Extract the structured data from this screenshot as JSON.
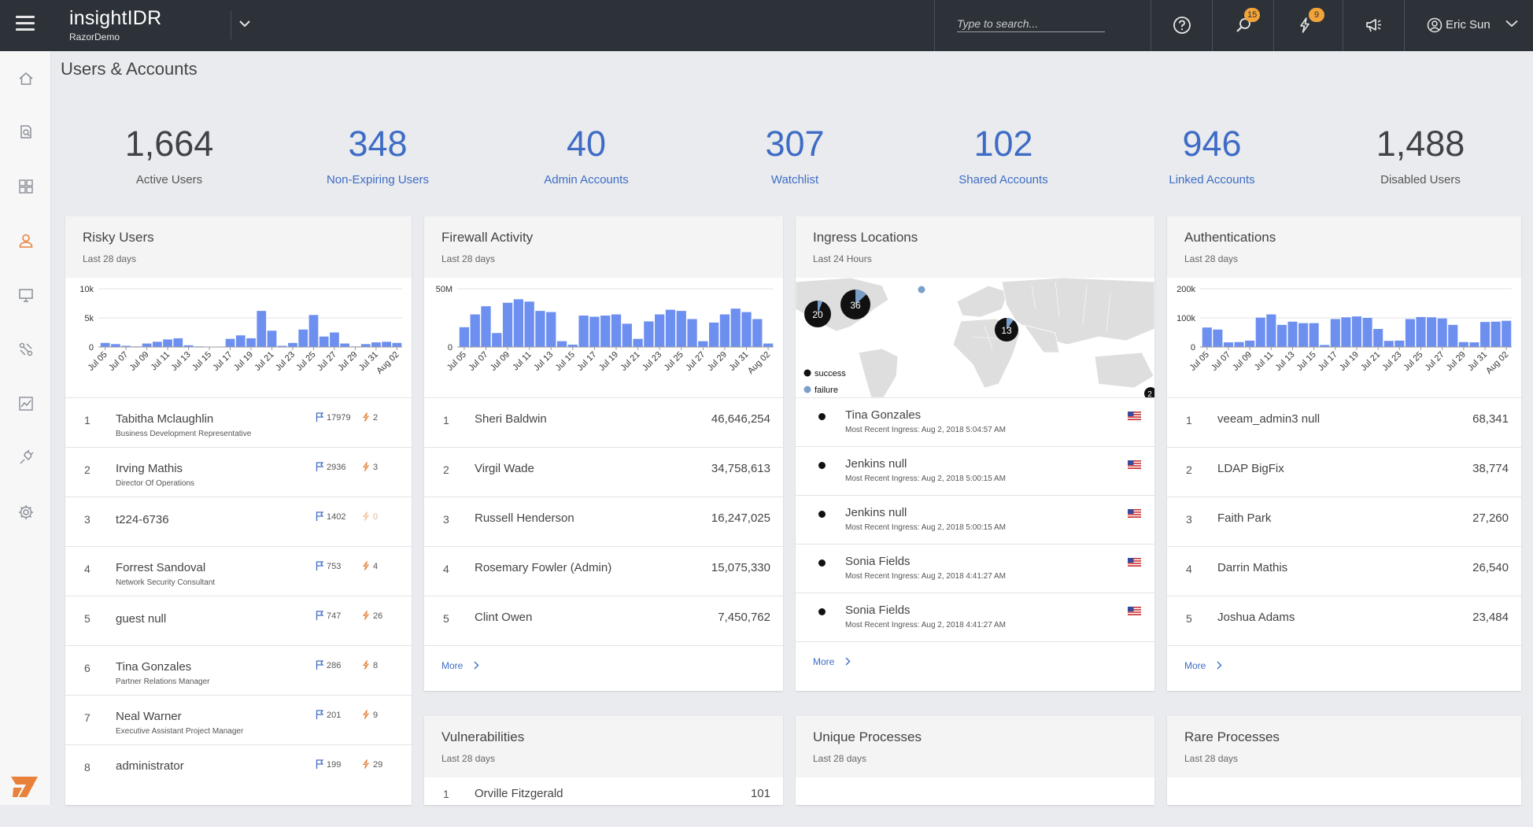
{
  "header": {
    "app_name": "insightIDR",
    "org_name": "RazorDemo",
    "search_placeholder": "Type to search...",
    "search_badge": "15",
    "alerts_badge": "9",
    "user_name": "Eric Sun"
  },
  "sidebar": {
    "items": [
      "home-icon",
      "search-document-icon",
      "dashboard-grid-icon",
      "user-icon",
      "monitor-icon",
      "network-tool-icon",
      "chart-icon",
      "plug-icon",
      "gear-icon"
    ],
    "active": "user-icon"
  },
  "page": {
    "title": "Users & Accounts"
  },
  "stats": [
    {
      "value": "1,664",
      "label": "Active Users",
      "style": "dark"
    },
    {
      "value": "348",
      "label": "Non-Expiring Users",
      "style": "blue"
    },
    {
      "value": "40",
      "label": "Admin Accounts",
      "style": "blue"
    },
    {
      "value": "307",
      "label": "Watchlist",
      "style": "blue"
    },
    {
      "value": "102",
      "label": "Shared Accounts",
      "style": "blue"
    },
    {
      "value": "946",
      "label": "Linked Accounts",
      "style": "blue"
    },
    {
      "value": "1,488",
      "label": "Disabled Users",
      "style": "dark"
    }
  ],
  "colors": {
    "bar": "#6d8ff0",
    "link": "#3e6cc5",
    "badge": "#f2a33a",
    "orange_icon": "#e8823a",
    "flag_blue": "#3e6cc5",
    "success": "#111111",
    "failure": "#7a9fc8"
  },
  "chart_data": [
    {
      "type": "bar",
      "title": "Risky Users",
      "subtitle": "Last 28 days",
      "yticks": [
        "10k",
        "5k",
        "0"
      ],
      "ylim": [
        0,
        10000
      ],
      "categories": [
        "Jul 05",
        "Jul 06",
        "Jul 07",
        "Jul 08",
        "Jul 09",
        "Jul 10",
        "Jul 11",
        "Jul 12",
        "Jul 13",
        "Jul 14",
        "Jul 15",
        "Jul 16",
        "Jul 17",
        "Jul 18",
        "Jul 19",
        "Jul 20",
        "Jul 21",
        "Jul 22",
        "Jul 23",
        "Jul 24",
        "Jul 25",
        "Jul 26",
        "Jul 27",
        "Jul 28",
        "Jul 29",
        "Jul 30",
        "Jul 31",
        "Aug 01",
        "Aug 02"
      ],
      "tick_labels": [
        "Jul 05",
        "Jul 07",
        "Jul 09",
        "Jul 11",
        "Jul 13",
        "Jul 15",
        "Jul 17",
        "Jul 19",
        "Jul 21",
        "Jul 23",
        "Jul 25",
        "Jul 27",
        "Jul 29",
        "Jul 31",
        "Aug 02"
      ],
      "values": [
        700,
        500,
        200,
        100,
        600,
        900,
        1300,
        1500,
        300,
        100,
        0,
        0,
        1400,
        2000,
        1500,
        6200,
        2800,
        200,
        700,
        3000,
        5500,
        1800,
        2500,
        600,
        100,
        500,
        800,
        900,
        700
      ]
    },
    {
      "type": "bar",
      "title": "Firewall Activity",
      "subtitle": "Last 28 days",
      "yticks": [
        "50M",
        "0"
      ],
      "ylim": [
        0,
        50000000
      ],
      "categories": [
        "Jul 05",
        "Jul 06",
        "Jul 07",
        "Jul 08",
        "Jul 09",
        "Jul 10",
        "Jul 11",
        "Jul 12",
        "Jul 13",
        "Jul 14",
        "Jul 15",
        "Jul 16",
        "Jul 17",
        "Jul 18",
        "Jul 19",
        "Jul 20",
        "Jul 21",
        "Jul 22",
        "Jul 23",
        "Jul 24",
        "Jul 25",
        "Jul 26",
        "Jul 27",
        "Jul 28",
        "Jul 29",
        "Jul 30",
        "Jul 31",
        "Aug 01",
        "Aug 02"
      ],
      "tick_labels": [
        "Jul 05",
        "Jul 07",
        "Jul 09",
        "Jul 11",
        "Jul 13",
        "Jul 15",
        "Jul 17",
        "Jul 19",
        "Jul 21",
        "Jul 23",
        "Jul 25",
        "Jul 27",
        "Jul 29",
        "Jul 31",
        "Aug 02"
      ],
      "values": [
        17000000,
        28000000,
        35000000,
        12000000,
        38000000,
        41000000,
        39000000,
        31000000,
        30000000,
        5000000,
        2000000,
        27000000,
        26000000,
        27000000,
        28000000,
        20000000,
        7000000,
        22000000,
        28000000,
        32000000,
        31000000,
        24000000,
        5000000,
        21000000,
        28000000,
        33000000,
        30000000,
        24000000,
        3000000
      ]
    },
    {
      "type": "bar",
      "title": "Authentications",
      "subtitle": "Last 28 days",
      "yticks": [
        "200k",
        "100k",
        "0"
      ],
      "ylim": [
        0,
        200000
      ],
      "categories": [
        "Jul 05",
        "Jul 06",
        "Jul 07",
        "Jul 08",
        "Jul 09",
        "Jul 10",
        "Jul 11",
        "Jul 12",
        "Jul 13",
        "Jul 14",
        "Jul 15",
        "Jul 16",
        "Jul 17",
        "Jul 18",
        "Jul 19",
        "Jul 20",
        "Jul 21",
        "Jul 22",
        "Jul 23",
        "Jul 24",
        "Jul 25",
        "Jul 26",
        "Jul 27",
        "Jul 28",
        "Jul 29",
        "Jul 30",
        "Jul 31",
        "Aug 01",
        "Aug 02"
      ],
      "tick_labels": [
        "Jul 05",
        "Jul 07",
        "Jul 09",
        "Jul 11",
        "Jul 13",
        "Jul 15",
        "Jul 17",
        "Jul 19",
        "Jul 21",
        "Jul 23",
        "Jul 25",
        "Jul 27",
        "Jul 29",
        "Jul 31",
        "Aug 02"
      ],
      "values": [
        67000,
        60000,
        16000,
        17000,
        22000,
        101000,
        112000,
        76000,
        87000,
        82000,
        82000,
        7000,
        96000,
        102000,
        105000,
        100000,
        62000,
        21000,
        22000,
        96000,
        103000,
        102000,
        98000,
        76000,
        17000,
        16000,
        86000,
        87000,
        90000
      ]
    },
    {
      "type": "scatter",
      "title": "Ingress Locations",
      "subtitle": "Last 24 Hours",
      "legend": [
        "success",
        "failure"
      ],
      "clusters": [
        {
          "count": "20",
          "failure": 0.06
        },
        {
          "count": "36",
          "failure": 0.12
        },
        {
          "count": "13",
          "failure": 0.1
        },
        {
          "count": "2",
          "failure": 0
        }
      ]
    }
  ],
  "risky_users": {
    "rows": [
      {
        "rank": "1",
        "name": "Tabitha Mclaughlin",
        "title": "Business Development Representative",
        "flags": "17979",
        "alerts": "2"
      },
      {
        "rank": "2",
        "name": "Irving Mathis",
        "title": "Director Of Operations",
        "flags": "2936",
        "alerts": "3"
      },
      {
        "rank": "3",
        "name": "t224-6736",
        "title": "",
        "flags": "1402",
        "alerts": "0"
      },
      {
        "rank": "4",
        "name": "Forrest Sandoval",
        "title": "Network Security Consultant",
        "flags": "753",
        "alerts": "4"
      },
      {
        "rank": "5",
        "name": "guest null",
        "title": "",
        "flags": "747",
        "alerts": "26"
      },
      {
        "rank": "6",
        "name": "Tina Gonzales",
        "title": "Partner Relations Manager",
        "flags": "286",
        "alerts": "8"
      },
      {
        "rank": "7",
        "name": "Neal Warner",
        "title": "Executive Assistant Project Manager",
        "flags": "201",
        "alerts": "9"
      },
      {
        "rank": "8",
        "name": "administrator",
        "title": "",
        "flags": "199",
        "alerts": "29"
      }
    ]
  },
  "firewall": {
    "rows": [
      {
        "rank": "1",
        "name": "Sheri Baldwin",
        "value": "46,646,254"
      },
      {
        "rank": "2",
        "name": "Virgil Wade",
        "value": "34,758,613"
      },
      {
        "rank": "3",
        "name": "Russell Henderson",
        "value": "16,247,025"
      },
      {
        "rank": "4",
        "name": "Rosemary Fowler (Admin)",
        "value": "15,075,330"
      },
      {
        "rank": "5",
        "name": "Clint Owen",
        "value": "7,450,762"
      }
    ],
    "more": "More"
  },
  "ingress": {
    "rows": [
      {
        "name": "Tina Gonzales",
        "sub": "Most Recent Ingress: Aug 2, 2018 5:04:57 AM"
      },
      {
        "name": "Jenkins null",
        "sub": "Most Recent Ingress: Aug 2, 2018 5:00:15 AM"
      },
      {
        "name": "Jenkins null",
        "sub": "Most Recent Ingress: Aug 2, 2018 5:00:15 AM"
      },
      {
        "name": "Sonia Fields",
        "sub": "Most Recent Ingress: Aug 2, 2018 4:41:27 AM"
      },
      {
        "name": "Sonia Fields",
        "sub": "Most Recent Ingress: Aug 2, 2018 4:41:27 AM"
      }
    ],
    "more": "More"
  },
  "auth": {
    "rows": [
      {
        "rank": "1",
        "name": "veeam_admin3 null",
        "value": "68,341"
      },
      {
        "rank": "2",
        "name": "LDAP BigFix",
        "value": "38,774"
      },
      {
        "rank": "3",
        "name": "Faith Park",
        "value": "27,260"
      },
      {
        "rank": "4",
        "name": "Darrin Mathis",
        "value": "26,540"
      },
      {
        "rank": "5",
        "name": "Joshua Adams",
        "value": "23,484"
      }
    ],
    "more": "More"
  },
  "vulnerabilities": {
    "title": "Vulnerabilities",
    "subtitle": "Last 28 days",
    "rows": [
      {
        "rank": "1",
        "name": "Orville Fitzgerald",
        "value": "101"
      }
    ]
  },
  "unique_processes": {
    "title": "Unique Processes",
    "subtitle": "Last 28 days"
  },
  "rare_processes": {
    "title": "Rare Processes",
    "subtitle": "Last 28 days"
  }
}
